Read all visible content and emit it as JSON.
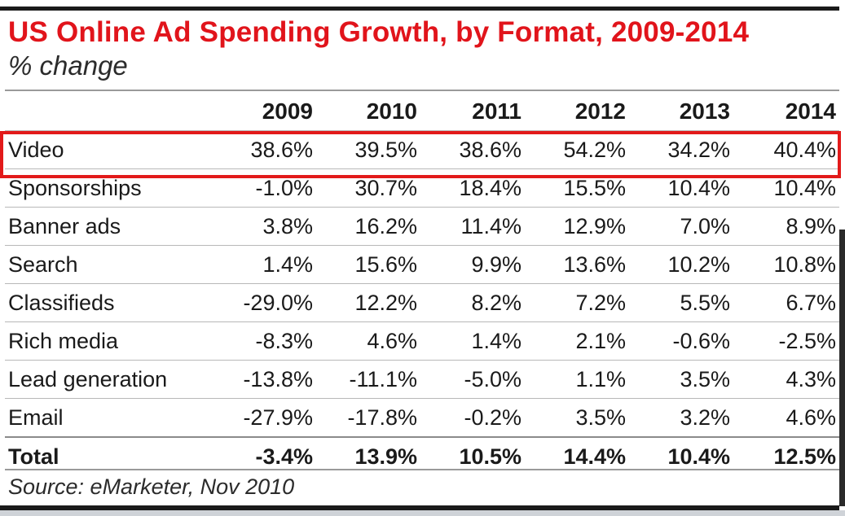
{
  "chart_data": {
    "type": "table",
    "title": "US Online Ad Spending Growth, by Format, 2009-2014",
    "subtitle": "% change",
    "columns": [
      "2009",
      "2010",
      "2011",
      "2012",
      "2013",
      "2014"
    ],
    "rows": [
      {
        "label": "Video",
        "values": [
          "38.6%",
          "39.5%",
          "38.6%",
          "54.2%",
          "34.2%",
          "40.4%"
        ],
        "highlighted": true
      },
      {
        "label": "Sponsorships",
        "values": [
          "-1.0%",
          "30.7%",
          "18.4%",
          "15.5%",
          "10.4%",
          "10.4%"
        ]
      },
      {
        "label": "Banner ads",
        "values": [
          "3.8%",
          "16.2%",
          "11.4%",
          "12.9%",
          "7.0%",
          "8.9%"
        ]
      },
      {
        "label": "Search",
        "values": [
          "1.4%",
          "15.6%",
          "9.9%",
          "13.6%",
          "10.2%",
          "10.8%"
        ]
      },
      {
        "label": "Classifieds",
        "values": [
          "-29.0%",
          "12.2%",
          "8.2%",
          "7.2%",
          "5.5%",
          "6.7%"
        ]
      },
      {
        "label": "Rich media",
        "values": [
          "-8.3%",
          "4.6%",
          "1.4%",
          "2.1%",
          "-0.6%",
          "-2.5%"
        ]
      },
      {
        "label": "Lead generation",
        "values": [
          "-13.8%",
          "-11.1%",
          "-5.0%",
          "1.1%",
          "3.5%",
          "4.3%"
        ]
      },
      {
        "label": "Email",
        "values": [
          "-27.9%",
          "-17.8%",
          "-0.2%",
          "3.5%",
          "3.2%",
          "4.6%"
        ]
      },
      {
        "label": "Total",
        "values": [
          "-3.4%",
          "13.9%",
          "10.5%",
          "14.4%",
          "10.4%",
          "12.5%"
        ],
        "bold": true
      }
    ],
    "source": "Source: eMarketer, Nov 2010",
    "colors": {
      "title": "#e1141b",
      "highlight_border": "#e21a1a",
      "text": "#1a1a1a"
    }
  }
}
